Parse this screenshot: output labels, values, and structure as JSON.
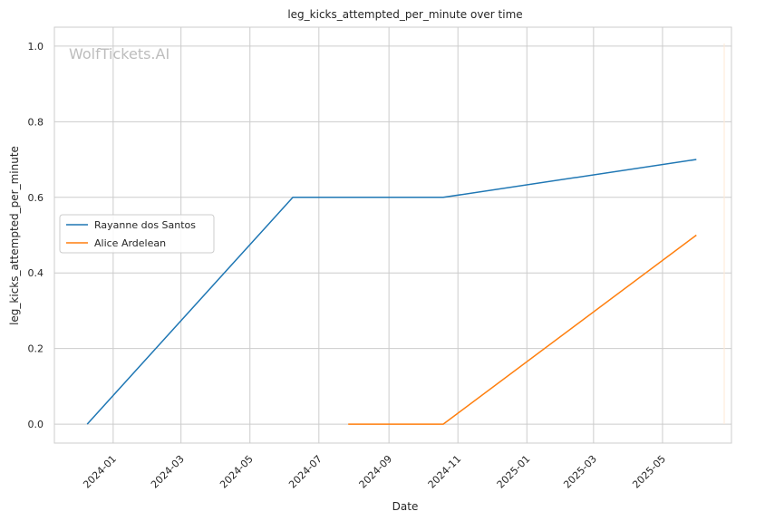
{
  "chart_data": {
    "type": "line",
    "title": "leg_kicks_attempted_per_minute over time",
    "xlabel": "Date",
    "ylabel": "leg_kicks_attempted_per_minute",
    "watermark": "WolfTickets.AI",
    "x_ticks": [
      "2024-01",
      "2024-03",
      "2024-05",
      "2024-07",
      "2024-09",
      "2024-11",
      "2025-01",
      "2025-03",
      "2025-05"
    ],
    "y_ticks": [
      "0.0",
      "0.2",
      "0.4",
      "0.6",
      "0.8",
      "1.0"
    ],
    "xlim": [
      "2023-11-10",
      "2025-07-01"
    ],
    "ylim": [
      -0.05,
      1.05
    ],
    "grid": true,
    "legend_position": "center-left",
    "series": [
      {
        "name": "Rayanne dos Santos",
        "color": "#1f77b4",
        "points": [
          {
            "x": "2023-12-09",
            "y": 0.0
          },
          {
            "x": "2024-06-08",
            "y": 0.6
          },
          {
            "x": "2024-10-19",
            "y": 0.6
          },
          {
            "x": "2025-05-31",
            "y": 0.7
          }
        ]
      },
      {
        "name": "Alice Ardelean",
        "color": "#ff7f0e",
        "points": [
          {
            "x": "2024-07-27",
            "y": 0.0
          },
          {
            "x": "2024-10-19",
            "y": 0.0
          },
          {
            "x": "2025-05-31",
            "y": 0.5
          }
        ]
      }
    ]
  }
}
